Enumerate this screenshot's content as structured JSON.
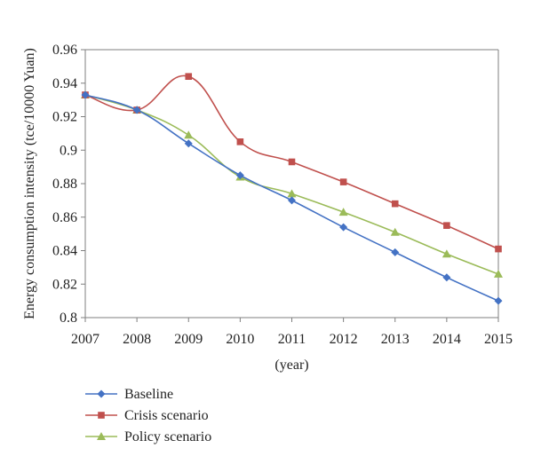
{
  "chart_data": {
    "type": "line",
    "title": "",
    "xlabel": "(year)",
    "ylabel": "Energy consumption intensity (tce/10000 Yuan)",
    "x": [
      "2007",
      "2008",
      "2009",
      "2010",
      "2011",
      "2012",
      "2013",
      "2014",
      "2015"
    ],
    "ylim": [
      0.8,
      0.96
    ],
    "y_ticks": [
      "0.8",
      "0.82",
      "0.84",
      "0.86",
      "0.88",
      "0.9",
      "0.92",
      "0.94",
      "0.96"
    ],
    "grid": false,
    "legend_position": "bottom-left",
    "series": [
      {
        "name": "Baseline",
        "color": "#4472c4",
        "marker": "diamond",
        "values": [
          0.933,
          0.924,
          0.904,
          0.885,
          0.87,
          0.854,
          0.839,
          0.824,
          0.81
        ]
      },
      {
        "name": "Crisis scenario",
        "color": "#c0504d",
        "marker": "square",
        "values": [
          0.933,
          0.924,
          0.944,
          0.905,
          0.893,
          0.881,
          0.868,
          0.855,
          0.841
        ]
      },
      {
        "name": "Policy scenario",
        "color": "#9bbb59",
        "marker": "triangle",
        "values": [
          0.933,
          0.924,
          0.909,
          0.884,
          0.874,
          0.863,
          0.851,
          0.838,
          0.826
        ]
      }
    ]
  }
}
